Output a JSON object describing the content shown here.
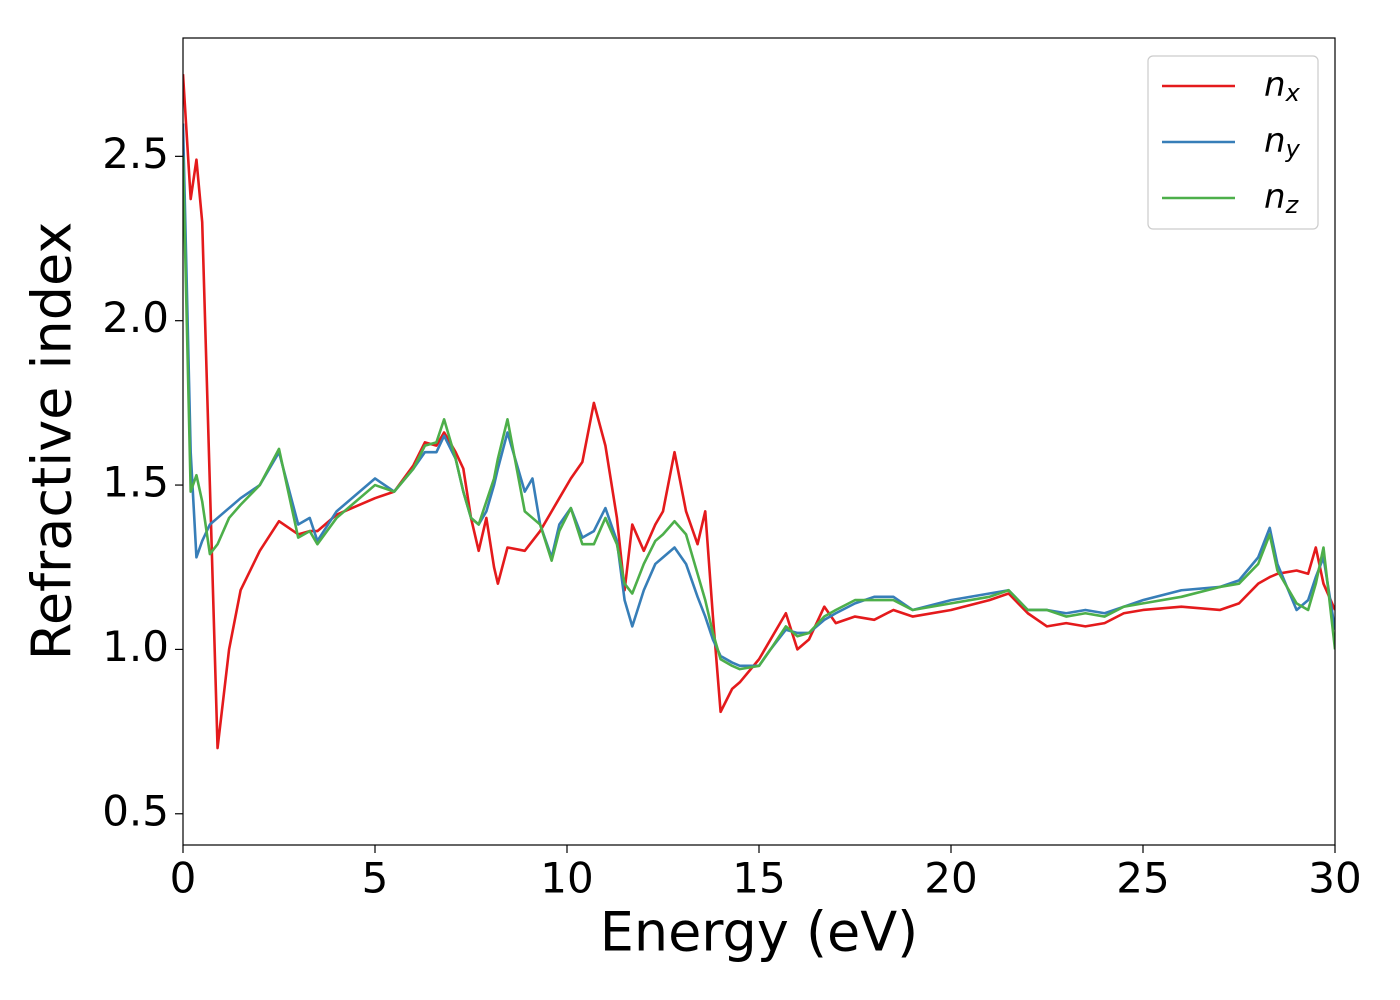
{
  "chart_data": {
    "type": "line",
    "xlabel": "Energy (eV)",
    "ylabel": "Refractive index",
    "x": [
      0,
      0.2,
      0.35,
      0.5,
      0.7,
      0.9,
      1.2,
      1.5,
      2,
      2.5,
      3,
      3.3,
      3.5,
      4,
      5,
      5.5,
      6,
      6.3,
      6.6,
      6.8,
      7.1,
      7.3,
      7.5,
      7.7,
      7.9,
      8.1,
      8.2,
      8.45,
      8.9,
      9.1,
      9.3,
      9.6,
      9.8,
      10.1,
      10.4,
      10.7,
      11,
      11.3,
      11.5,
      11.7,
      12,
      12.3,
      12.5,
      12.8,
      13.1,
      13.4,
      13.6,
      13.8,
      14,
      14.3,
      14.5,
      15,
      15.3,
      15.7,
      16,
      16.3,
      16.7,
      17,
      17.5,
      18,
      18.5,
      19,
      20,
      21,
      21.5,
      22,
      22.5,
      23,
      23.5,
      24,
      24.5,
      25,
      26,
      27,
      27.5,
      28,
      28.3,
      28.5,
      29,
      29.3,
      29.5,
      29.7,
      30
    ],
    "series": [
      {
        "name": "nx",
        "color": "#e41a1c",
        "values": [
          2.75,
          2.37,
          2.49,
          2.3,
          1.5,
          0.7,
          1.0,
          1.18,
          1.3,
          1.39,
          1.35,
          1.36,
          1.36,
          1.41,
          1.46,
          1.48,
          1.56,
          1.63,
          1.62,
          1.66,
          1.6,
          1.55,
          1.4,
          1.3,
          1.4,
          1.25,
          1.2,
          1.31,
          1.3,
          1.33,
          1.36,
          1.42,
          1.46,
          1.52,
          1.57,
          1.75,
          1.62,
          1.4,
          1.18,
          1.38,
          1.3,
          1.38,
          1.42,
          1.6,
          1.42,
          1.32,
          1.42,
          1.1,
          0.81,
          0.88,
          0.9,
          0.97,
          1.03,
          1.11,
          1.0,
          1.03,
          1.13,
          1.08,
          1.1,
          1.09,
          1.12,
          1.1,
          1.12,
          1.15,
          1.17,
          1.11,
          1.07,
          1.08,
          1.07,
          1.08,
          1.11,
          1.12,
          1.13,
          1.12,
          1.14,
          1.2,
          1.22,
          1.23,
          1.24,
          1.23,
          1.31,
          1.2,
          1.12
        ]
      },
      {
        "name": "ny",
        "color": "#377eb8",
        "values": [
          2.6,
          1.6,
          1.28,
          1.33,
          1.38,
          1.4,
          1.43,
          1.46,
          1.5,
          1.6,
          1.38,
          1.4,
          1.33,
          1.42,
          1.52,
          1.48,
          1.55,
          1.6,
          1.6,
          1.65,
          1.58,
          1.48,
          1.4,
          1.38,
          1.42,
          1.5,
          1.55,
          1.66,
          1.48,
          1.52,
          1.38,
          1.28,
          1.38,
          1.43,
          1.34,
          1.36,
          1.43,
          1.33,
          1.15,
          1.07,
          1.18,
          1.26,
          1.28,
          1.31,
          1.26,
          1.16,
          1.1,
          1.03,
          0.98,
          0.96,
          0.95,
          0.95,
          1.0,
          1.06,
          1.05,
          1.05,
          1.09,
          1.11,
          1.14,
          1.16,
          1.16,
          1.12,
          1.15,
          1.17,
          1.18,
          1.12,
          1.12,
          1.11,
          1.12,
          1.11,
          1.13,
          1.15,
          1.18,
          1.19,
          1.21,
          1.28,
          1.37,
          1.26,
          1.12,
          1.15,
          1.22,
          1.28,
          1.06
        ]
      },
      {
        "name": "nz",
        "color": "#4daf4a",
        "values": [
          2.5,
          1.48,
          1.53,
          1.45,
          1.29,
          1.32,
          1.4,
          1.44,
          1.5,
          1.61,
          1.34,
          1.36,
          1.32,
          1.4,
          1.5,
          1.48,
          1.55,
          1.62,
          1.63,
          1.7,
          1.58,
          1.48,
          1.4,
          1.38,
          1.45,
          1.52,
          1.58,
          1.7,
          1.42,
          1.4,
          1.38,
          1.27,
          1.36,
          1.43,
          1.32,
          1.32,
          1.4,
          1.32,
          1.2,
          1.17,
          1.26,
          1.33,
          1.35,
          1.39,
          1.35,
          1.23,
          1.15,
          1.05,
          0.97,
          0.95,
          0.94,
          0.95,
          1.0,
          1.07,
          1.04,
          1.05,
          1.1,
          1.12,
          1.15,
          1.15,
          1.15,
          1.12,
          1.14,
          1.16,
          1.18,
          1.12,
          1.12,
          1.1,
          1.11,
          1.1,
          1.13,
          1.14,
          1.16,
          1.19,
          1.2,
          1.26,
          1.35,
          1.24,
          1.14,
          1.12,
          1.2,
          1.31,
          1.0
        ]
      }
    ],
    "xlim": [
      0,
      30
    ],
    "xticks": [
      0,
      5,
      10,
      15,
      20,
      25,
      30
    ],
    "ylim": [
      0.405,
      2.86
    ],
    "yticks": [
      0.5,
      {
        "value": 1,
        "label": "1.0"
      },
      1.5,
      {
        "value": 2,
        "label": "2.0"
      },
      2.5
    ],
    "grid": false,
    "legend": "upper right"
  }
}
